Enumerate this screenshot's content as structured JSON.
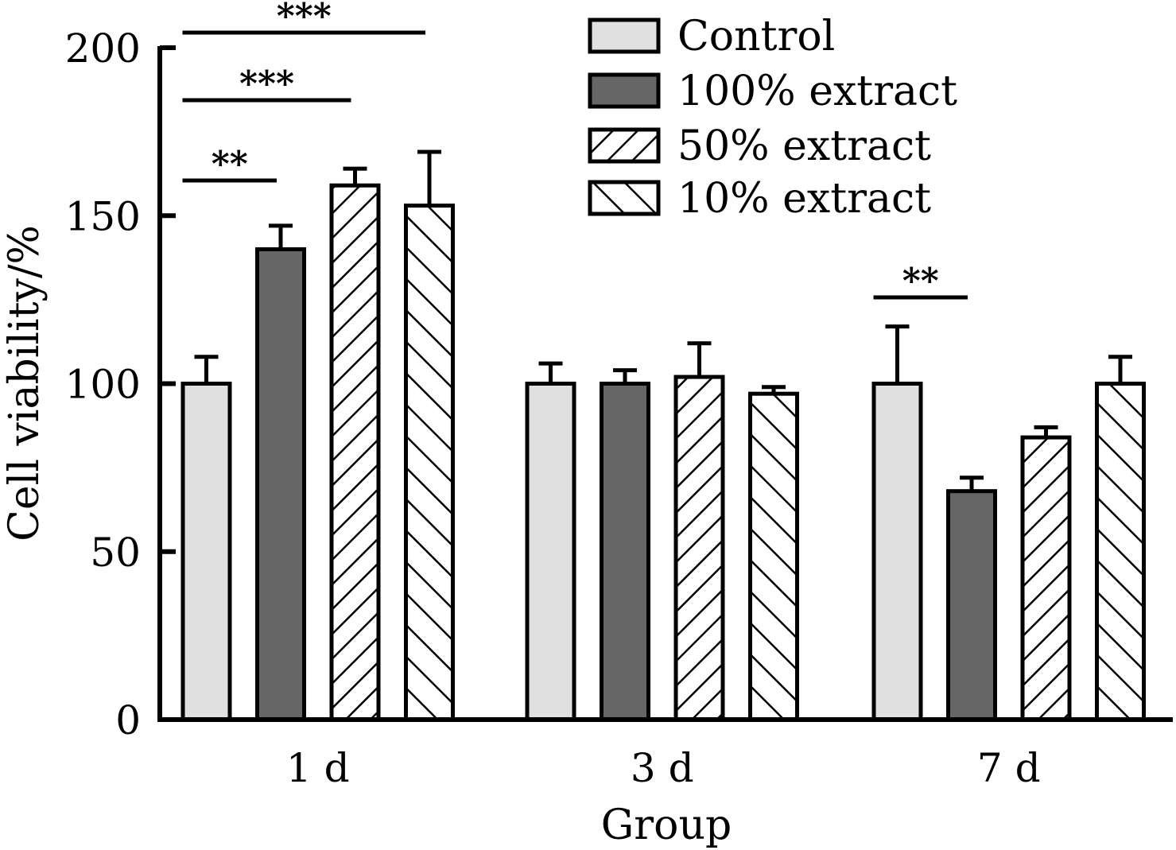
{
  "chart_data": {
    "type": "bar",
    "title": "",
    "xlabel": "Group",
    "ylabel": "Cell viability/%",
    "ylim": [
      0,
      200
    ],
    "yticks": [
      0,
      50,
      100,
      150,
      200
    ],
    "categories": [
      "1 d",
      "3 d",
      "7 d"
    ],
    "grid": false,
    "legend_position": "top-right",
    "series": [
      {
        "name": "Control",
        "pattern": "solid",
        "color": "#e0e0e0",
        "values": [
          100,
          100,
          100
        ],
        "errors": [
          8,
          6,
          17
        ]
      },
      {
        "name": "100% extract",
        "pattern": "solid",
        "color": "#666666",
        "values": [
          140,
          100,
          68
        ],
        "errors": [
          7,
          4,
          4
        ]
      },
      {
        "name": "50% extract",
        "pattern": "forward-hatch",
        "color": "#ffffff",
        "values": [
          159,
          102,
          84
        ],
        "errors": [
          5,
          10,
          3
        ]
      },
      {
        "name": "10% extract",
        "pattern": "back-hatch",
        "color": "#ffffff",
        "values": [
          153,
          97,
          100
        ],
        "errors": [
          16,
          2,
          8
        ]
      }
    ],
    "annotations": [
      {
        "label": "***",
        "category": "1 d",
        "from_series": 0,
        "to_series": 3
      },
      {
        "label": "***",
        "category": "1 d",
        "from_series": 0,
        "to_series": 2
      },
      {
        "label": "**",
        "category": "1 d",
        "from_series": 0,
        "to_series": 1
      },
      {
        "label": "**",
        "category": "7 d",
        "from_series": 0,
        "to_series": 1
      }
    ]
  }
}
